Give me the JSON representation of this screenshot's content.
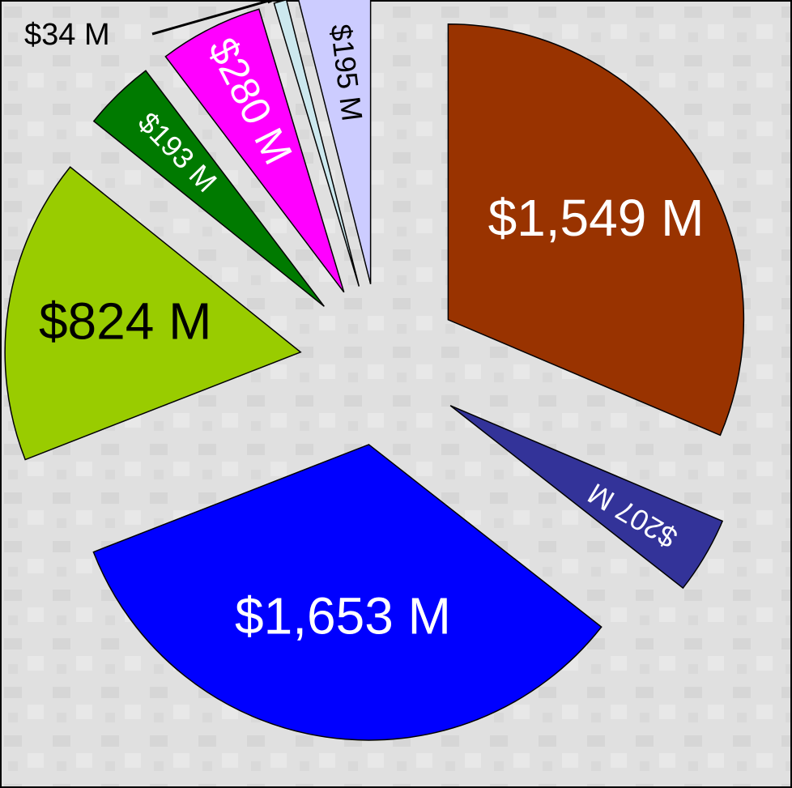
{
  "chart_data": {
    "type": "pie",
    "values": [
      1549,
      207,
      1653,
      824,
      193,
      280,
      34,
      195
    ],
    "value_labels": [
      "$1,549 M",
      "$207 M",
      "$1,653 M",
      "$824 M",
      "$193 M",
      "$280 M",
      "$34 M",
      "$195 M"
    ],
    "colors": [
      "#993300",
      "#333399",
      "#0000ff",
      "#99cc00",
      "#007a00",
      "#ff00ff",
      "#cce8ee",
      "#ccccff"
    ]
  }
}
